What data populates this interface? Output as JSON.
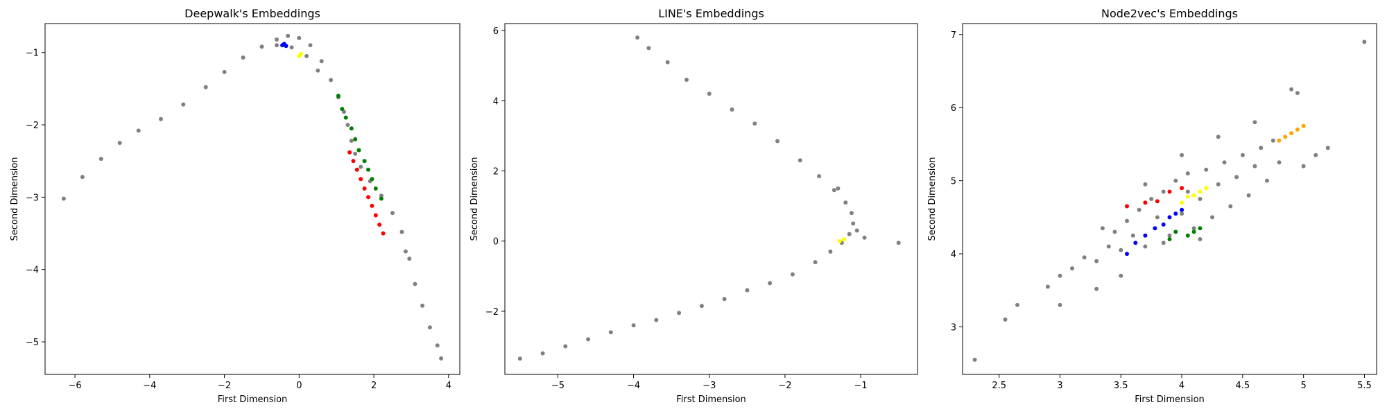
{
  "chart_data": [
    {
      "type": "scatter",
      "title": "Deepwalk's Embeddings",
      "xlabel": "First Dimension",
      "ylabel": "Second Dimension",
      "xlim": [
        -6.8,
        4.3
      ],
      "ylim": [
        -5.45,
        -0.6
      ],
      "xticks": [
        -6,
        -4,
        -2,
        0,
        2,
        4
      ],
      "yticks": [
        -5,
        -4,
        -3,
        -2,
        -1
      ],
      "grid": false,
      "legend": "none",
      "series_colors": {
        "gray": "#808080",
        "blue": "#0000ff",
        "green": "#008000",
        "red": "#ff0000",
        "yellow": "#ffff00"
      },
      "series": [
        {
          "color": "gray",
          "points": [
            [
              -6.3,
              -3.02
            ],
            [
              -5.8,
              -2.72
            ],
            [
              -5.3,
              -2.47
            ],
            [
              -4.8,
              -2.25
            ],
            [
              -4.3,
              -2.08
            ],
            [
              -3.7,
              -1.92
            ],
            [
              -3.1,
              -1.72
            ],
            [
              -2.5,
              -1.48
            ],
            [
              -2.0,
              -1.27
            ],
            [
              -1.5,
              -1.07
            ],
            [
              -1.0,
              -0.92
            ],
            [
              -0.6,
              -0.82
            ],
            [
              -0.3,
              -0.77
            ],
            [
              0.0,
              -0.8
            ],
            [
              0.3,
              -0.9
            ],
            [
              0.6,
              -1.12
            ],
            [
              0.85,
              -1.38
            ],
            [
              1.05,
              -1.62
            ],
            [
              1.2,
              -1.82
            ],
            [
              1.3,
              -2.0
            ],
            [
              1.4,
              -2.22
            ],
            [
              1.5,
              -2.4
            ],
            [
              1.65,
              -2.58
            ],
            [
              1.9,
              -2.78
            ],
            [
              2.2,
              -2.98
            ],
            [
              2.5,
              -3.22
            ],
            [
              2.75,
              -3.48
            ],
            [
              2.95,
              -3.85
            ],
            [
              3.1,
              -4.2
            ],
            [
              3.3,
              -4.5
            ],
            [
              3.5,
              -4.8
            ],
            [
              3.7,
              -5.05
            ],
            [
              3.8,
              -5.23
            ],
            [
              -0.6,
              -0.9
            ],
            [
              -0.2,
              -0.93
            ],
            [
              0.2,
              -1.05
            ],
            [
              0.5,
              -1.25
            ],
            [
              2.85,
              -3.75
            ]
          ]
        },
        {
          "color": "blue",
          "points": [
            [
              -0.45,
              -0.9
            ],
            [
              -0.4,
              -0.88
            ],
            [
              -0.35,
              -0.91
            ]
          ]
        },
        {
          "color": "yellow",
          "points": [
            [
              0.0,
              -1.05
            ],
            [
              0.05,
              -1.02
            ]
          ]
        },
        {
          "color": "green",
          "points": [
            [
              1.05,
              -1.6
            ],
            [
              1.15,
              -1.78
            ],
            [
              1.25,
              -1.9
            ],
            [
              1.4,
              -2.05
            ],
            [
              1.5,
              -2.2
            ],
            [
              1.6,
              -2.35
            ],
            [
              1.75,
              -2.5
            ],
            [
              1.85,
              -2.62
            ],
            [
              1.95,
              -2.75
            ],
            [
              2.05,
              -2.88
            ],
            [
              2.2,
              -3.02
            ]
          ]
        },
        {
          "color": "red",
          "points": [
            [
              1.35,
              -2.38
            ],
            [
              1.45,
              -2.5
            ],
            [
              1.55,
              -2.62
            ],
            [
              1.65,
              -2.75
            ],
            [
              1.75,
              -2.88
            ],
            [
              1.85,
              -3.0
            ],
            [
              1.95,
              -3.12
            ],
            [
              2.05,
              -3.25
            ],
            [
              2.15,
              -3.38
            ],
            [
              2.25,
              -3.5
            ]
          ]
        }
      ]
    },
    {
      "type": "scatter",
      "title": "LINE's Embeddings",
      "xlabel": "First Dimension",
      "ylabel": "Second Dimension",
      "xlim": [
        -5.7,
        -0.25
      ],
      "ylim": [
        -3.8,
        6.2
      ],
      "xticks": [
        -5,
        -4,
        -3,
        -2,
        -1
      ],
      "yticks": [
        -2,
        0,
        2,
        4,
        6
      ],
      "grid": false,
      "legend": "none",
      "series_colors": {
        "gray": "#808080",
        "yellow": "#ffff00"
      },
      "series": [
        {
          "color": "gray",
          "points": [
            [
              -5.5,
              -3.35
            ],
            [
              -5.2,
              -3.2
            ],
            [
              -4.9,
              -3.0
            ],
            [
              -4.6,
              -2.8
            ],
            [
              -4.3,
              -2.6
            ],
            [
              -4.0,
              -2.4
            ],
            [
              -3.7,
              -2.25
            ],
            [
              -3.4,
              -2.05
            ],
            [
              -3.1,
              -1.85
            ],
            [
              -2.8,
              -1.65
            ],
            [
              -2.5,
              -1.4
            ],
            [
              -2.2,
              -1.2
            ],
            [
              -1.9,
              -0.95
            ],
            [
              -1.6,
              -0.6
            ],
            [
              -1.4,
              -0.3
            ],
            [
              -1.25,
              -0.05
            ],
            [
              -1.15,
              0.2
            ],
            [
              -1.1,
              0.5
            ],
            [
              -1.12,
              0.8
            ],
            [
              -1.2,
              1.1
            ],
            [
              -1.35,
              1.45
            ],
            [
              -1.55,
              1.85
            ],
            [
              -1.8,
              2.3
            ],
            [
              -2.1,
              2.85
            ],
            [
              -2.4,
              3.35
            ],
            [
              -2.7,
              3.75
            ],
            [
              -3.0,
              4.2
            ],
            [
              -3.3,
              4.6
            ],
            [
              -3.55,
              5.1
            ],
            [
              -3.8,
              5.5
            ],
            [
              -3.95,
              5.8
            ],
            [
              -0.5,
              -0.05
            ],
            [
              -0.95,
              0.1
            ],
            [
              -1.05,
              0.3
            ],
            [
              -1.3,
              1.5
            ]
          ]
        },
        {
          "color": "yellow",
          "points": [
            [
              -1.28,
              0.0
            ],
            [
              -1.22,
              0.05
            ]
          ]
        }
      ]
    },
    {
      "type": "scatter",
      "title": "Node2vec's Embeddings",
      "xlabel": "First Dimension",
      "ylabel": "Second Dimension",
      "xlim": [
        2.2,
        5.6
      ],
      "ylim": [
        2.35,
        7.15
      ],
      "xticks": [
        2.5,
        3.0,
        3.5,
        4.0,
        4.5,
        5.0,
        5.5
      ],
      "yticks": [
        3,
        4,
        5,
        6,
        7
      ],
      "grid": false,
      "legend": "none",
      "series_colors": {
        "gray": "#808080",
        "red": "#ff0000",
        "blue": "#0000ff",
        "green": "#008000",
        "yellow": "#ffff00",
        "orange": "#ffa500"
      },
      "series": [
        {
          "color": "gray",
          "points": [
            [
              2.3,
              2.55
            ],
            [
              2.55,
              3.1
            ],
            [
              2.65,
              3.3
            ],
            [
              2.9,
              3.55
            ],
            [
              3.0,
              3.7
            ],
            [
              3.1,
              3.8
            ],
            [
              3.2,
              3.95
            ],
            [
              3.3,
              3.9
            ],
            [
              3.3,
              3.52
            ],
            [
              3.4,
              4.1
            ],
            [
              3.45,
              4.3
            ],
            [
              3.5,
              4.05
            ],
            [
              3.55,
              4.45
            ],
            [
              3.6,
              4.25
            ],
            [
              3.65,
              4.6
            ],
            [
              3.7,
              4.1
            ],
            [
              3.75,
              4.75
            ],
            [
              3.8,
              4.5
            ],
            [
              3.85,
              4.85
            ],
            [
              3.9,
              4.25
            ],
            [
              3.95,
              5.0
            ],
            [
              4.0,
              4.55
            ],
            [
              4.05,
              5.1
            ],
            [
              4.1,
              4.35
            ],
            [
              4.15,
              4.75
            ],
            [
              4.2,
              5.15
            ],
            [
              4.25,
              4.5
            ],
            [
              4.3,
              4.95
            ],
            [
              4.35,
              5.25
            ],
            [
              4.4,
              4.65
            ],
            [
              4.45,
              5.05
            ],
            [
              4.5,
              5.35
            ],
            [
              4.55,
              4.8
            ],
            [
              4.6,
              5.2
            ],
            [
              4.65,
              5.45
            ],
            [
              4.7,
              5.0
            ],
            [
              4.75,
              5.55
            ],
            [
              4.8,
              5.25
            ],
            [
              4.9,
              6.25
            ],
            [
              4.95,
              6.2
            ],
            [
              5.0,
              5.2
            ],
            [
              5.1,
              5.35
            ],
            [
              5.2,
              5.45
            ],
            [
              5.5,
              6.9
            ],
            [
              3.5,
              3.7
            ],
            [
              3.0,
              3.3
            ],
            [
              4.6,
              5.8
            ],
            [
              4.3,
              5.6
            ],
            [
              3.85,
              4.15
            ],
            [
              4.05,
              4.85
            ],
            [
              3.35,
              4.35
            ],
            [
              3.7,
              4.95
            ],
            [
              4.0,
              5.35
            ],
            [
              4.15,
              4.2
            ]
          ]
        },
        {
          "color": "red",
          "points": [
            [
              3.55,
              4.65
            ],
            [
              3.7,
              4.7
            ],
            [
              3.8,
              4.72
            ],
            [
              3.9,
              4.85
            ],
            [
              4.0,
              4.9
            ]
          ]
        },
        {
          "color": "blue",
          "points": [
            [
              3.55,
              4.0
            ],
            [
              3.62,
              4.15
            ],
            [
              3.7,
              4.25
            ],
            [
              3.78,
              4.35
            ],
            [
              3.85,
              4.4
            ],
            [
              3.9,
              4.5
            ],
            [
              3.95,
              4.55
            ],
            [
              4.0,
              4.6
            ]
          ]
        },
        {
          "color": "green",
          "points": [
            [
              3.9,
              4.2
            ],
            [
              3.95,
              4.3
            ],
            [
              4.05,
              4.25
            ],
            [
              4.1,
              4.3
            ],
            [
              4.15,
              4.35
            ]
          ]
        },
        {
          "color": "yellow",
          "points": [
            [
              4.0,
              4.7
            ],
            [
              4.05,
              4.78
            ],
            [
              4.1,
              4.8
            ],
            [
              4.15,
              4.85
            ],
            [
              4.2,
              4.9
            ]
          ]
        },
        {
          "color": "orange",
          "points": [
            [
              4.8,
              5.55
            ],
            [
              4.85,
              5.6
            ],
            [
              4.9,
              5.65
            ],
            [
              4.95,
              5.7
            ],
            [
              5.0,
              5.75
            ]
          ]
        }
      ]
    }
  ]
}
